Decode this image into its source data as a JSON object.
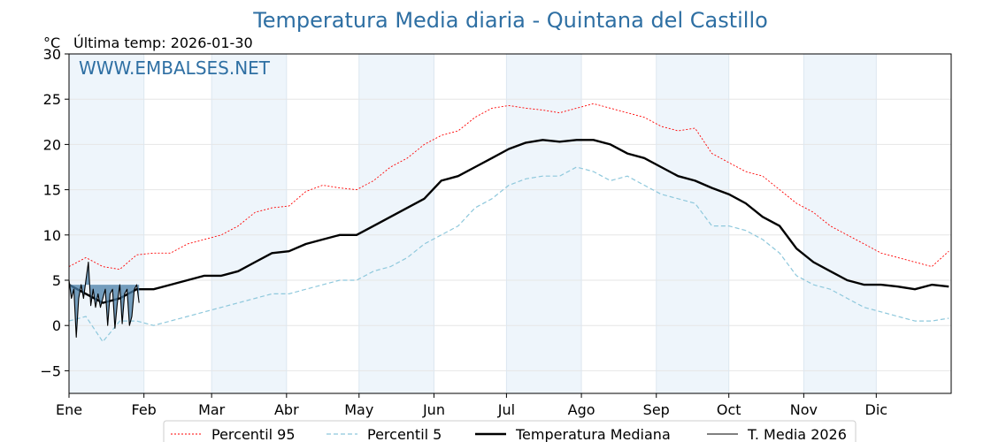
{
  "chart_data": {
    "type": "line",
    "title": "Temperatura Media diaria - Quintana del Castillo",
    "subtitle": "Última temp: 2026-01-30",
    "unit_label": "°C",
    "watermark": "WWW.EMBALSES.NET",
    "xlabel": "",
    "ylabel": "",
    "ylim": [
      -7.5,
      30
    ],
    "yticks": [
      -5,
      0,
      5,
      10,
      15,
      20,
      25,
      30
    ],
    "x_range_days": [
      1,
      366
    ],
    "month_ticks": [
      {
        "label": "Ene",
        "day": 1
      },
      {
        "label": "Feb",
        "day": 32
      },
      {
        "label": "Mar",
        "day": 60
      },
      {
        "label": "Abr",
        "day": 91
      },
      {
        "label": "May",
        "day": 121
      },
      {
        "label": "Jun",
        "day": 152
      },
      {
        "label": "Jul",
        "day": 182
      },
      {
        "label": "Ago",
        "day": 213
      },
      {
        "label": "Sep",
        "day": 244
      },
      {
        "label": "Oct",
        "day": 274
      },
      {
        "label": "Nov",
        "day": 305
      },
      {
        "label": "Dic",
        "day": 335
      }
    ],
    "shaded_months": [
      "Ene",
      "Mar",
      "May",
      "Jul",
      "Sep",
      "Nov"
    ],
    "grid": true,
    "legend_position": "bottom-center",
    "series": [
      {
        "name": "Percentil 95",
        "color": "#ff0000",
        "style": "dotted",
        "x": [
          1,
          8,
          15,
          22,
          29,
          36,
          43,
          50,
          57,
          64,
          71,
          78,
          85,
          92,
          99,
          106,
          113,
          120,
          127,
          134,
          141,
          148,
          155,
          162,
          169,
          176,
          183,
          190,
          197,
          204,
          211,
          218,
          225,
          232,
          239,
          246,
          253,
          260,
          267,
          274,
          281,
          288,
          295,
          302,
          309,
          316,
          323,
          330,
          337,
          344,
          351,
          358,
          365
        ],
        "y": [
          6.5,
          7.5,
          6.5,
          6.2,
          7.8,
          8,
          8,
          9,
          9.5,
          10,
          11,
          12.5,
          13,
          13.2,
          14.8,
          15.5,
          15.2,
          15,
          16,
          17.5,
          18.5,
          20,
          21,
          21.5,
          23,
          24,
          24.3,
          24,
          23.8,
          23.5,
          24,
          24.5,
          24,
          23.5,
          23,
          22,
          21.5,
          21.8,
          19,
          18,
          17,
          16.5,
          15,
          13.5,
          12.5,
          11,
          10,
          9,
          8,
          7.5,
          7,
          6.5,
          8.2
        ]
      },
      {
        "name": "Percentil 5",
        "color": "#8ec8dc",
        "style": "dashed",
        "x": [
          1,
          8,
          15,
          22,
          29,
          36,
          43,
          50,
          57,
          64,
          71,
          78,
          85,
          92,
          99,
          106,
          113,
          120,
          127,
          134,
          141,
          148,
          155,
          162,
          169,
          176,
          183,
          190,
          197,
          204,
          211,
          218,
          225,
          232,
          239,
          246,
          253,
          260,
          267,
          274,
          281,
          288,
          295,
          302,
          309,
          316,
          323,
          330,
          337,
          344,
          351,
          358,
          365
        ],
        "y": [
          0.5,
          1,
          -1.8,
          0.5,
          0.5,
          0,
          0.5,
          1,
          1.5,
          2,
          2.5,
          3,
          3.5,
          3.5,
          4,
          4.5,
          5,
          5,
          6,
          6.5,
          7.5,
          9,
          10,
          11,
          13,
          14,
          15.5,
          16.2,
          16.5,
          16.5,
          17.5,
          17,
          16,
          16.5,
          15.5,
          14.5,
          14,
          13.5,
          11,
          11,
          10.5,
          9.5,
          8,
          5.5,
          4.5,
          4,
          3,
          2,
          1.5,
          1,
          0.5,
          0.5,
          0.8
        ]
      },
      {
        "name": "Temperatura Mediana",
        "color": "#000000",
        "style": "solid-thick",
        "x": [
          1,
          8,
          15,
          22,
          29,
          36,
          43,
          50,
          57,
          64,
          71,
          78,
          85,
          92,
          99,
          106,
          113,
          120,
          127,
          134,
          141,
          148,
          155,
          162,
          169,
          176,
          183,
          190,
          197,
          204,
          211,
          218,
          225,
          232,
          239,
          246,
          253,
          260,
          267,
          274,
          281,
          288,
          295,
          302,
          309,
          316,
          323,
          330,
          337,
          344,
          351,
          358,
          365
        ],
        "y": [
          4.5,
          3.5,
          2.5,
          3,
          4,
          4,
          4.5,
          5,
          5.5,
          5.5,
          6,
          7,
          8,
          8.2,
          9,
          9.5,
          10,
          10,
          11,
          12,
          13,
          14,
          16,
          16.5,
          17.5,
          18.5,
          19.5,
          20.2,
          20.5,
          20.3,
          20.5,
          20.5,
          20,
          19,
          18.5,
          17.5,
          16.5,
          16,
          15.2,
          14.5,
          13.5,
          12,
          11,
          8.5,
          7,
          6,
          5,
          4.5,
          4.5,
          4.3,
          4,
          4.5,
          4.3
        ]
      },
      {
        "name": "T. Media 2026",
        "color": "#000000",
        "style": "solid-thin",
        "fill": "#4a7fa8",
        "x": [
          1,
          2,
          3,
          4,
          5,
          6,
          7,
          8,
          9,
          10,
          11,
          12,
          13,
          14,
          15,
          16,
          17,
          18,
          19,
          20,
          21,
          22,
          23,
          24,
          25,
          26,
          27,
          28,
          29,
          30
        ],
        "y": [
          5,
          3,
          4,
          -1.3,
          3,
          4.5,
          3,
          5,
          7,
          2.2,
          4,
          2,
          3.5,
          2,
          3,
          4,
          0,
          3.5,
          4,
          -0.3,
          2.5,
          4.5,
          0.2,
          3.5,
          4,
          0,
          1,
          4,
          4.5,
          2.5
        ]
      }
    ],
    "legend": [
      {
        "label": "Percentil 95",
        "color": "#ff0000",
        "style": "dotted"
      },
      {
        "label": "Percentil 5",
        "color": "#8ec8dc",
        "style": "dashed"
      },
      {
        "label": "Temperatura Mediana",
        "color": "#000000",
        "style": "solid-thick"
      },
      {
        "label": "T. Media 2026",
        "color": "#000000",
        "style": "solid-thin"
      }
    ]
  }
}
